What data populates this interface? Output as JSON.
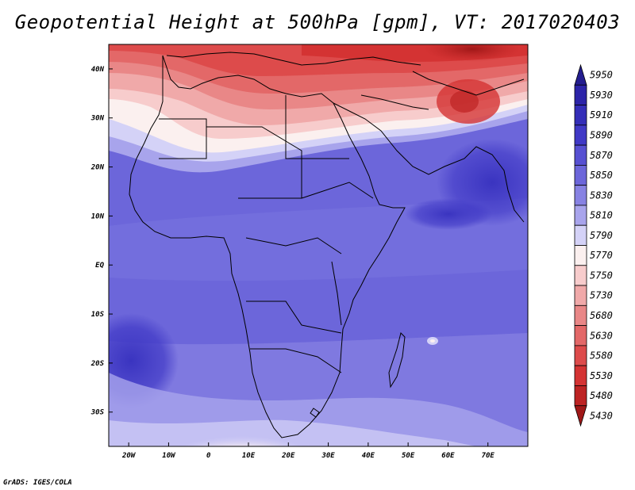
{
  "title": "Geopotential Height at 500hPa [gpm], VT: 2017020403",
  "credit": "GrADS: IGES/COLA",
  "map": {
    "region": "Africa",
    "lon_range": [
      -25,
      80
    ],
    "lat_range": [
      -37,
      45
    ],
    "lon_ticks": [
      {
        "value": -20,
        "label": "20W"
      },
      {
        "value": -10,
        "label": "10W"
      },
      {
        "value": 0,
        "label": "0"
      },
      {
        "value": 10,
        "label": "10E"
      },
      {
        "value": 20,
        "label": "20E"
      },
      {
        "value": 30,
        "label": "30E"
      },
      {
        "value": 40,
        "label": "40E"
      },
      {
        "value": 50,
        "label": "50E"
      },
      {
        "value": 60,
        "label": "60E"
      },
      {
        "value": 70,
        "label": "70E"
      }
    ],
    "lat_ticks": [
      {
        "value": 40,
        "label": "40N"
      },
      {
        "value": 30,
        "label": "30N"
      },
      {
        "value": 20,
        "label": "20N"
      },
      {
        "value": 10,
        "label": "10N"
      },
      {
        "value": 0,
        "label": "EQ"
      },
      {
        "value": -10,
        "label": "10S"
      },
      {
        "value": -20,
        "label": "20S"
      },
      {
        "value": -30,
        "label": "30S"
      }
    ]
  },
  "colorbar": {
    "levels": [
      {
        "label": "5950",
        "color": "#241d8f"
      },
      {
        "label": "5930",
        "color": "#2c24a8"
      },
      {
        "label": "5910",
        "color": "#342eb8"
      },
      {
        "label": "5890",
        "color": "#4039c6"
      },
      {
        "label": "5870",
        "color": "#5750d2"
      },
      {
        "label": "5850",
        "color": "#6c66da"
      },
      {
        "label": "5830",
        "color": "#8782e3"
      },
      {
        "label": "5810",
        "color": "#a8a4ec"
      },
      {
        "label": "5790",
        "color": "#d4d2f7"
      },
      {
        "label": "5770",
        "color": "#fbf0ef"
      },
      {
        "label": "5750",
        "color": "#f7cccc"
      },
      {
        "label": "5730",
        "color": "#f0a9a9"
      },
      {
        "label": "5680",
        "color": "#e98787"
      },
      {
        "label": "5630",
        "color": "#e36868"
      },
      {
        "label": "5580",
        "color": "#dd4b4b"
      },
      {
        "label": "5530",
        "color": "#d43333"
      },
      {
        "label": "5480",
        "color": "#bd2323"
      },
      {
        "label": "5430",
        "color": "#a01818"
      }
    ]
  }
}
